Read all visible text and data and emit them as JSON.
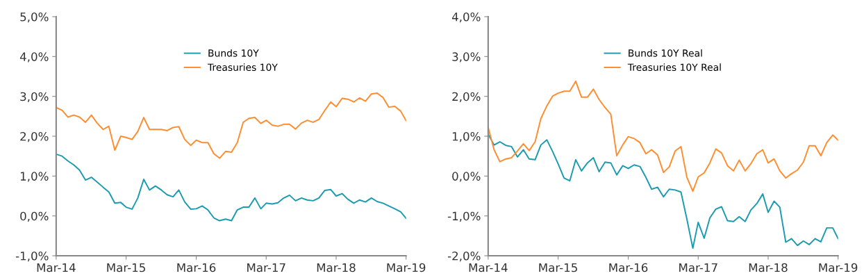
{
  "chart_data": [
    {
      "type": "line",
      "legend": "top",
      "grid": false,
      "x": [
        "2014-03",
        "2014-04",
        "2014-05",
        "2014-06",
        "2014-07",
        "2014-08",
        "2014-09",
        "2014-10",
        "2014-11",
        "2014-12",
        "2015-01",
        "2015-02",
        "2015-03",
        "2015-04",
        "2015-05",
        "2015-06",
        "2015-07",
        "2015-08",
        "2015-09",
        "2015-10",
        "2015-11",
        "2015-12",
        "2016-01",
        "2016-02",
        "2016-03",
        "2016-04",
        "2016-05",
        "2016-06",
        "2016-07",
        "2016-08",
        "2016-09",
        "2016-10",
        "2016-11",
        "2016-12",
        "2017-01",
        "2017-02",
        "2017-03",
        "2017-04",
        "2017-05",
        "2017-06",
        "2017-07",
        "2017-08",
        "2017-09",
        "2017-10",
        "2017-11",
        "2017-12",
        "2018-01",
        "2018-02",
        "2018-03",
        "2018-04",
        "2018-05",
        "2018-06",
        "2018-07",
        "2018-08",
        "2018-09",
        "2018-10",
        "2018-11",
        "2018-12",
        "2019-01",
        "2019-02",
        "2019-03"
      ],
      "xlim": [
        "2014-03",
        "2019-03"
      ],
      "xticks": [
        {
          "value": "2014-03",
          "label": "Mar-14"
        },
        {
          "value": "2015-03",
          "label": "Mar-15"
        },
        {
          "value": "2016-03",
          "label": "Mar-16"
        },
        {
          "value": "2017-03",
          "label": "Mar-17"
        },
        {
          "value": "2018-03",
          "label": "Mar-18"
        },
        {
          "value": "2019-03",
          "label": "Mar-19"
        }
      ],
      "ylim": [
        -1,
        5
      ],
      "yticks": [
        {
          "value": -1,
          "label": "-1,0%"
        },
        {
          "value": 0,
          "label": "0,0%"
        },
        {
          "value": 1,
          "label": "1,0%"
        },
        {
          "value": 2,
          "label": "2,0%"
        },
        {
          "value": 3,
          "label": "3,0%"
        },
        {
          "value": 4,
          "label": "4,0%"
        },
        {
          "value": 5,
          "label": "5,0%"
        }
      ],
      "series": [
        {
          "name": "Bunds 10Y",
          "color": "#1a9bb0",
          "values": [
            1.55,
            1.5,
            1.38,
            1.28,
            1.15,
            0.9,
            0.97,
            0.85,
            0.72,
            0.6,
            0.32,
            0.34,
            0.22,
            0.17,
            0.45,
            0.92,
            0.65,
            0.75,
            0.65,
            0.53,
            0.48,
            0.65,
            0.35,
            0.17,
            0.18,
            0.25,
            0.15,
            -0.05,
            -0.12,
            -0.08,
            -0.12,
            0.15,
            0.22,
            0.22,
            0.45,
            0.18,
            0.32,
            0.3,
            0.33,
            0.45,
            0.52,
            0.38,
            0.45,
            0.4,
            0.38,
            0.45,
            0.64,
            0.66,
            0.5,
            0.56,
            0.42,
            0.32,
            0.4,
            0.35,
            0.45,
            0.36,
            0.32,
            0.25,
            0.18,
            0.1,
            -0.06
          ]
        },
        {
          "name": "Treasuries 10Y",
          "color": "#ff8c2e",
          "values": [
            2.72,
            2.65,
            2.48,
            2.53,
            2.48,
            2.35,
            2.53,
            2.33,
            2.17,
            2.25,
            1.65,
            2.0,
            1.97,
            1.92,
            2.12,
            2.47,
            2.17,
            2.17,
            2.17,
            2.14,
            2.22,
            2.24,
            1.92,
            1.77,
            1.9,
            1.84,
            1.84,
            1.56,
            1.45,
            1.62,
            1.6,
            1.84,
            2.35,
            2.45,
            2.47,
            2.32,
            2.4,
            2.28,
            2.25,
            2.3,
            2.3,
            2.18,
            2.33,
            2.4,
            2.35,
            2.42,
            2.65,
            2.86,
            2.74,
            2.95,
            2.93,
            2.86,
            2.96,
            2.88,
            3.06,
            3.08,
            2.97,
            2.73,
            2.75,
            2.63,
            2.39
          ]
        }
      ]
    },
    {
      "type": "line",
      "legend": "top",
      "grid": false,
      "x": [
        "2014-03",
        "2014-04",
        "2014-05",
        "2014-06",
        "2014-07",
        "2014-08",
        "2014-09",
        "2014-10",
        "2014-11",
        "2014-12",
        "2015-01",
        "2015-02",
        "2015-03",
        "2015-04",
        "2015-05",
        "2015-06",
        "2015-07",
        "2015-08",
        "2015-09",
        "2015-10",
        "2015-11",
        "2015-12",
        "2016-01",
        "2016-02",
        "2016-03",
        "2016-04",
        "2016-05",
        "2016-06",
        "2016-07",
        "2016-08",
        "2016-09",
        "2016-10",
        "2016-11",
        "2016-12",
        "2017-01",
        "2017-02",
        "2017-03",
        "2017-04",
        "2017-05",
        "2017-06",
        "2017-07",
        "2017-08",
        "2017-09",
        "2017-10",
        "2017-11",
        "2017-12",
        "2018-01",
        "2018-02",
        "2018-03",
        "2018-04",
        "2018-05",
        "2018-06",
        "2018-07",
        "2018-08",
        "2018-09",
        "2018-10",
        "2018-11",
        "2018-12",
        "2019-01",
        "2019-02",
        "2019-03"
      ],
      "xlim": [
        "2014-03",
        "2019-03"
      ],
      "xticks": [
        {
          "value": "2014-03",
          "label": "Mar-14"
        },
        {
          "value": "2015-03",
          "label": "Mar-15"
        },
        {
          "value": "2016-03",
          "label": "Mar-16"
        },
        {
          "value": "2017-03",
          "label": "Mar-17"
        },
        {
          "value": "2018-03",
          "label": "Mar-18"
        },
        {
          "value": "2019-03",
          "label": "Mar-19"
        }
      ],
      "ylim": [
        -2,
        4
      ],
      "yticks": [
        {
          "value": -2,
          "label": "-2,0%"
        },
        {
          "value": -1,
          "label": "-1,0%"
        },
        {
          "value": 0,
          "label": "0,0%"
        },
        {
          "value": 1,
          "label": "1,0%"
        },
        {
          "value": 2,
          "label": "2,0%"
        },
        {
          "value": 3,
          "label": "3,0%"
        },
        {
          "value": 4,
          "label": "4,0%"
        }
      ],
      "series": [
        {
          "name": "Bunds 10Y Real",
          "color": "#1a9bb0",
          "values": [
            1.05,
            0.78,
            0.86,
            0.77,
            0.74,
            0.48,
            0.66,
            0.43,
            0.41,
            0.78,
            0.91,
            0.61,
            0.31,
            -0.05,
            -0.12,
            0.41,
            0.13,
            0.33,
            0.46,
            0.11,
            0.35,
            0.33,
            0.03,
            0.26,
            0.19,
            0.28,
            0.24,
            -0.03,
            -0.33,
            -0.28,
            -0.52,
            -0.33,
            -0.35,
            -0.4,
            -1.08,
            -1.81,
            -1.16,
            -1.56,
            -1.05,
            -0.83,
            -0.77,
            -1.12,
            -1.14,
            -1.02,
            -1.14,
            -0.85,
            -0.69,
            -0.45,
            -0.91,
            -0.63,
            -0.78,
            -1.66,
            -1.57,
            -1.74,
            -1.63,
            -1.72,
            -1.57,
            -1.65,
            -1.3,
            -1.3,
            -1.57
          ]
        },
        {
          "name": "Treasuries 10Y Real",
          "color": "#ff8c2e",
          "values": [
            1.22,
            0.66,
            0.36,
            0.43,
            0.46,
            0.63,
            0.81,
            0.64,
            0.86,
            1.44,
            1.76,
            2.01,
            2.08,
            2.13,
            2.13,
            2.38,
            1.98,
            1.98,
            2.18,
            1.92,
            1.72,
            1.55,
            0.51,
            0.78,
            0.99,
            0.94,
            0.84,
            0.56,
            0.66,
            0.53,
            0.09,
            0.23,
            0.63,
            0.74,
            -0.03,
            -0.38,
            -0.02,
            0.08,
            0.33,
            0.68,
            0.58,
            0.26,
            0.13,
            0.4,
            0.13,
            0.31,
            0.56,
            0.66,
            0.33,
            0.43,
            0.13,
            -0.05,
            0.06,
            0.15,
            0.35,
            0.76,
            0.76,
            0.51,
            0.84,
            1.03,
            0.9
          ]
        }
      ]
    }
  ]
}
